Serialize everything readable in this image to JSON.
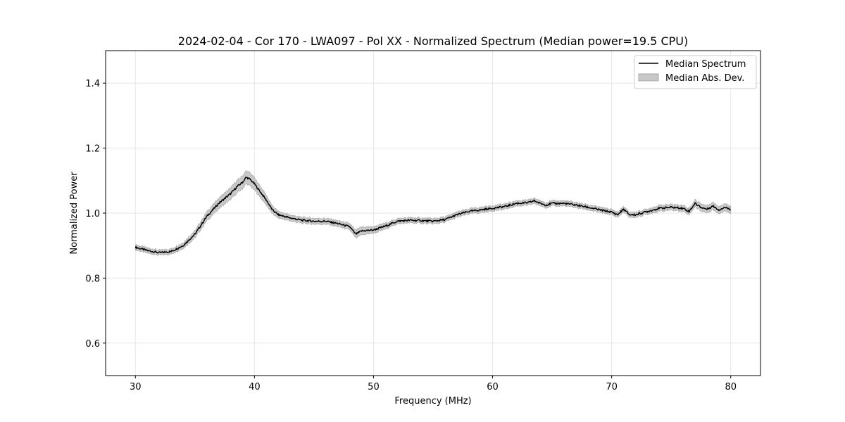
{
  "chart_data": {
    "type": "line",
    "title": "2024-02-04 - Cor 170 - LWA097 - Pol XX - Normalized Spectrum (Median power=19.5 CPU)",
    "xlabel": "Frequency (MHz)",
    "ylabel": "Normalized Power",
    "xlim": [
      27.5,
      82.5
    ],
    "ylim": [
      0.5,
      1.5
    ],
    "xticks": [
      30,
      40,
      50,
      60,
      70,
      80
    ],
    "yticks": [
      0.6,
      0.8,
      1.0,
      1.2,
      1.4
    ],
    "xtick_labels": [
      "30",
      "40",
      "50",
      "60",
      "70",
      "80"
    ],
    "ytick_labels": [
      "0.6",
      "0.8",
      "1.0",
      "1.2",
      "1.4"
    ],
    "grid": true,
    "legend_position": "top-right",
    "series": [
      {
        "name": "Median Spectrum",
        "color": "#000000",
        "x": [
          30,
          31,
          32,
          33,
          34,
          35,
          36,
          37,
          37.5,
          38,
          38.5,
          39,
          39.3,
          39.6,
          40,
          40.5,
          41,
          41.5,
          42,
          43,
          44,
          45,
          46,
          47,
          48,
          48.5,
          49,
          50,
          51,
          52,
          53,
          54,
          55,
          56,
          57,
          58,
          59,
          60,
          61,
          62,
          63,
          63.5,
          64,
          64.5,
          65,
          66,
          67,
          68,
          69,
          70,
          70.5,
          71,
          71.5,
          72,
          73,
          74,
          75,
          76,
          76.5,
          77,
          77.5,
          78,
          78.5,
          79,
          79.5,
          80
        ],
        "y": [
          0.895,
          0.885,
          0.878,
          0.882,
          0.9,
          0.935,
          0.99,
          1.03,
          1.045,
          1.06,
          1.08,
          1.095,
          1.11,
          1.105,
          1.09,
          1.065,
          1.04,
          1.01,
          0.995,
          0.985,
          0.978,
          0.975,
          0.975,
          0.968,
          0.958,
          0.935,
          0.945,
          0.948,
          0.96,
          0.975,
          0.978,
          0.977,
          0.975,
          0.98,
          0.995,
          1.005,
          1.01,
          1.015,
          1.02,
          1.03,
          1.032,
          1.038,
          1.03,
          1.025,
          1.03,
          1.03,
          1.025,
          1.018,
          1.01,
          1.003,
          0.995,
          1.012,
          0.995,
          0.995,
          1.005,
          1.015,
          1.018,
          1.015,
          1.005,
          1.03,
          1.018,
          1.012,
          1.022,
          1.01,
          1.018,
          1.012
        ],
        "mad": [
          0.008,
          0.008,
          0.008,
          0.008,
          0.009,
          0.011,
          0.014,
          0.016,
          0.017,
          0.018,
          0.019,
          0.02,
          0.02,
          0.02,
          0.019,
          0.017,
          0.015,
          0.012,
          0.01,
          0.009,
          0.009,
          0.009,
          0.009,
          0.009,
          0.01,
          0.012,
          0.012,
          0.01,
          0.009,
          0.008,
          0.008,
          0.008,
          0.008,
          0.008,
          0.008,
          0.008,
          0.008,
          0.008,
          0.008,
          0.008,
          0.008,
          0.008,
          0.008,
          0.008,
          0.008,
          0.008,
          0.008,
          0.008,
          0.008,
          0.008,
          0.008,
          0.008,
          0.008,
          0.008,
          0.008,
          0.009,
          0.009,
          0.009,
          0.009,
          0.011,
          0.011,
          0.011,
          0.011,
          0.011,
          0.011,
          0.011
        ]
      }
    ],
    "legend": {
      "items": [
        {
          "label": "Median Spectrum",
          "kind": "line",
          "color": "#000000"
        },
        {
          "label": "Median Abs. Dev.",
          "kind": "patch",
          "color": "#c8c8c8"
        }
      ]
    }
  }
}
